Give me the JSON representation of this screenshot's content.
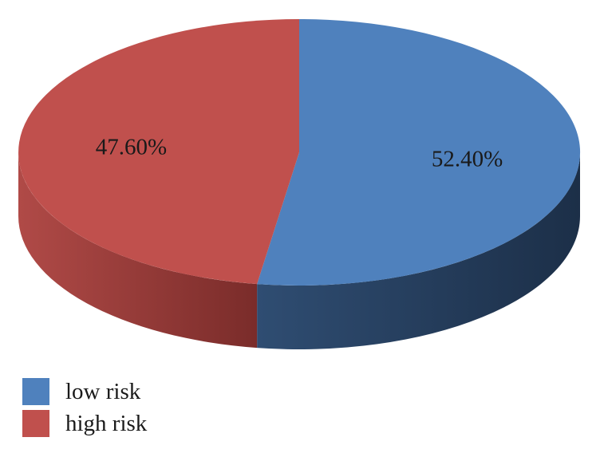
{
  "chart_data": {
    "type": "pie",
    "style": "3d",
    "slices": [
      {
        "name": "low risk",
        "value": 52.4,
        "label": "52.40%",
        "color": "#4f81bd",
        "side_color": "#26405f"
      },
      {
        "name": "high risk",
        "value": 47.6,
        "label": "47.60%",
        "color": "#c0504d",
        "side_color": "#8c3533"
      }
    ],
    "start": "12 o'clock",
    "direction": "clockwise",
    "legend_position": "bottom-left"
  }
}
